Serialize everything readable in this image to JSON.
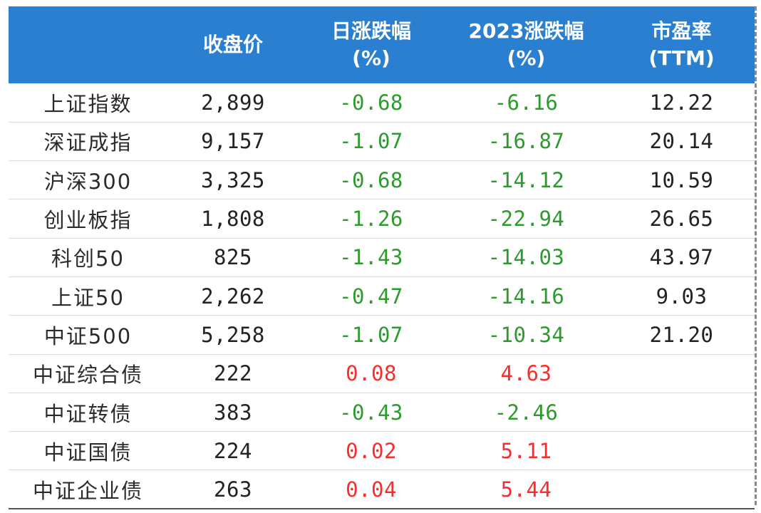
{
  "table": {
    "headers": [
      {
        "line1": "",
        "line2": ""
      },
      {
        "line1": "收盘价",
        "line2": ""
      },
      {
        "line1": "日涨跌幅",
        "line2": "(%)"
      },
      {
        "line1": "2023涨跌幅",
        "line2": "(%)"
      },
      {
        "line1": "市盈率",
        "line2": "(TTM)"
      }
    ],
    "rows": [
      {
        "name": "上证指数",
        "close": "2,899",
        "day_change": "-0.68",
        "ytd_change": "-6.16",
        "pe": "12.22"
      },
      {
        "name": "深证成指",
        "close": "9,157",
        "day_change": "-1.07",
        "ytd_change": "-16.87",
        "pe": "20.14"
      },
      {
        "name": "沪深300",
        "close": "3,325",
        "day_change": "-0.68",
        "ytd_change": "-14.12",
        "pe": "10.59"
      },
      {
        "name": "创业板指",
        "close": "1,808",
        "day_change": "-1.26",
        "ytd_change": "-22.94",
        "pe": "26.65"
      },
      {
        "name": "科创50",
        "close": "825",
        "day_change": "-1.43",
        "ytd_change": "-14.03",
        "pe": "43.97"
      },
      {
        "name": "上证50",
        "close": "2,262",
        "day_change": "-0.47",
        "ytd_change": "-14.16",
        "pe": "9.03"
      },
      {
        "name": "中证500",
        "close": "5,258",
        "day_change": "-1.07",
        "ytd_change": "-10.34",
        "pe": "21.20"
      },
      {
        "name": "中证综合债",
        "close": "222",
        "day_change": "0.08",
        "ytd_change": "4.63",
        "pe": ""
      },
      {
        "name": "中证转债",
        "close": "383",
        "day_change": "-0.43",
        "ytd_change": "-2.46",
        "pe": ""
      },
      {
        "name": "中证国债",
        "close": "224",
        "day_change": "0.02",
        "ytd_change": "5.11",
        "pe": ""
      },
      {
        "name": "中证企业债",
        "close": "263",
        "day_change": "0.04",
        "ytd_change": "5.44",
        "pe": ""
      }
    ]
  },
  "colors": {
    "header_bg": "#2a7fd0",
    "header_text": "#ffffff",
    "negative": "#2e9a2e",
    "positive": "#ff2a2a",
    "neutral": "#222222"
  }
}
